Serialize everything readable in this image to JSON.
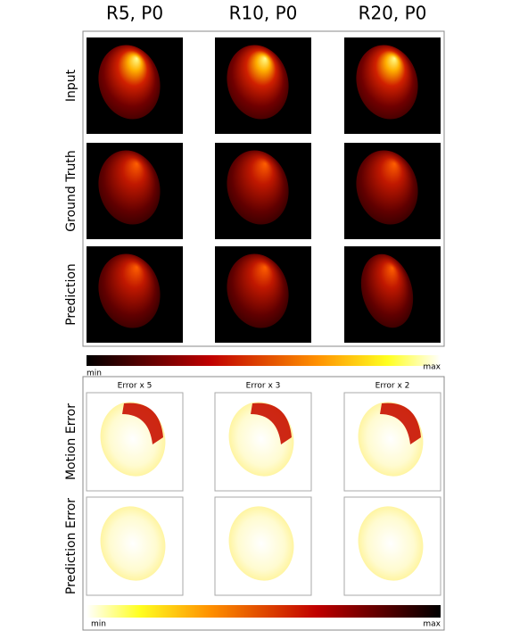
{
  "column_titles": [
    "R5, P0",
    "R10, P0",
    "R20, P0"
  ],
  "top_rows": [
    "Input",
    "Ground Truth",
    "Prediction"
  ],
  "top_colorbar": {
    "min": "min",
    "max": "max"
  },
  "error_titles": [
    "Error x 5",
    "Error x 3",
    "Error x 2"
  ],
  "bottom_rows": [
    "Motion Error",
    "Prediction Error"
  ],
  "bottom_colorbar": {
    "min": "min",
    "max": "max"
  }
}
